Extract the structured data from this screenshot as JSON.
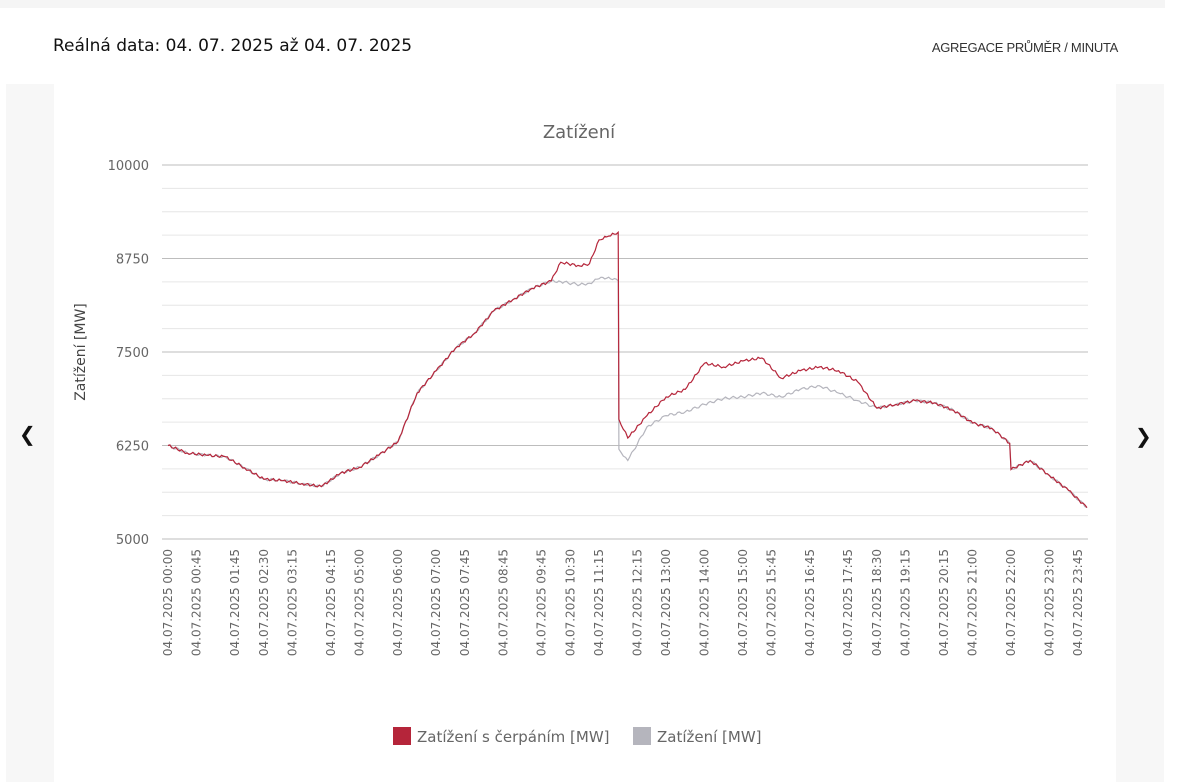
{
  "header": {
    "title": "Reálná data: 04. 07. 2025 až 04. 07. 2025",
    "aggregation": "AGREGACE PRŮMĚR / MINUTA"
  },
  "nav": {
    "prev_icon": "chevron-left-icon",
    "next_icon": "chevron-right-icon"
  },
  "chart_data": {
    "type": "line",
    "title": "Zatížení",
    "ylabel": "Zatížení [MW]",
    "xlabel": "",
    "ylim": [
      5000,
      10000
    ],
    "yticks": [
      "10000",
      "8750",
      "7500",
      "6250",
      "5000"
    ],
    "grid": true,
    "legend_position": "bottom",
    "xtick_labels": [
      "04.07.2025 00:00",
      "04.07.2025 00:45",
      "04.07.2025 01:45",
      "04.07.2025 02:30",
      "04.07.2025 03:15",
      "04.07.2025 04:15",
      "04.07.2025 05:00",
      "04.07.2025 06:00",
      "04.07.2025 07:00",
      "04.07.2025 07:45",
      "04.07.2025 08:45",
      "04.07.2025 09:45",
      "04.07.2025 10:30",
      "04.07.2025 11:15",
      "04.07.2025 12:15",
      "04.07.2025 13:00",
      "04.07.2025 14:00",
      "04.07.2025 15:00",
      "04.07.2025 15:45",
      "04.07.2025 16:45",
      "04.07.2025 17:45",
      "04.07.2025 18:30",
      "04.07.2025 19:15",
      "04.07.2025 20:15",
      "04.07.2025 21:00",
      "04.07.2025 22:00",
      "04.07.2025 23:00",
      "04.07.2025 23:45"
    ],
    "x": [
      "00:00",
      "00:30",
      "01:00",
      "01:30",
      "02:00",
      "02:30",
      "03:00",
      "03:30",
      "04:00",
      "04:30",
      "05:00",
      "05:30",
      "06:00",
      "06:30",
      "07:00",
      "07:30",
      "08:00",
      "08:30",
      "09:00",
      "09:30",
      "10:00",
      "10:15",
      "10:45",
      "11:00",
      "11:15",
      "11:30",
      "11:45",
      "11:46",
      "12:00",
      "12:30",
      "13:00",
      "13:30",
      "14:00",
      "14:30",
      "15:00",
      "15:30",
      "16:00",
      "16:30",
      "17:00",
      "17:30",
      "18:00",
      "18:30",
      "19:00",
      "19:30",
      "20:00",
      "20:30",
      "21:00",
      "21:30",
      "21:58",
      "22:00",
      "22:30",
      "23:00",
      "23:30",
      "23:59"
    ],
    "series": [
      {
        "name": "Zatížení s čerpáním [MW]",
        "color": "#b5253a",
        "values": [
          6250,
          6150,
          6120,
          6100,
          5950,
          5800,
          5780,
          5740,
          5700,
          5880,
          5960,
          6120,
          6300,
          6950,
          7250,
          7550,
          7750,
          8050,
          8200,
          8350,
          8450,
          8700,
          8650,
          8680,
          9000,
          9050,
          9100,
          6600,
          6350,
          6650,
          6900,
          7000,
          7350,
          7300,
          7380,
          7420,
          7150,
          7250,
          7300,
          7250,
          7100,
          6750,
          6800,
          6850,
          6820,
          6720,
          6550,
          6480,
          6280,
          5930,
          6050,
          5850,
          5650,
          5420
        ]
      },
      {
        "name": "Zatížení [MW]",
        "color": "#b5b5bd",
        "values": [
          6250,
          6150,
          6120,
          6100,
          5950,
          5800,
          5780,
          5740,
          5700,
          5880,
          5960,
          6120,
          6300,
          6950,
          7250,
          7550,
          7750,
          8050,
          8200,
          8350,
          8450,
          8440,
          8400,
          8420,
          8480,
          8500,
          8450,
          6200,
          6050,
          6500,
          6650,
          6700,
          6800,
          6880,
          6900,
          6950,
          6900,
          7000,
          7050,
          6950,
          6850,
          6750,
          6800,
          6850,
          6820,
          6720,
          6550,
          6480,
          6280,
          5930,
          6050,
          5850,
          5650,
          5420
        ]
      }
    ]
  }
}
